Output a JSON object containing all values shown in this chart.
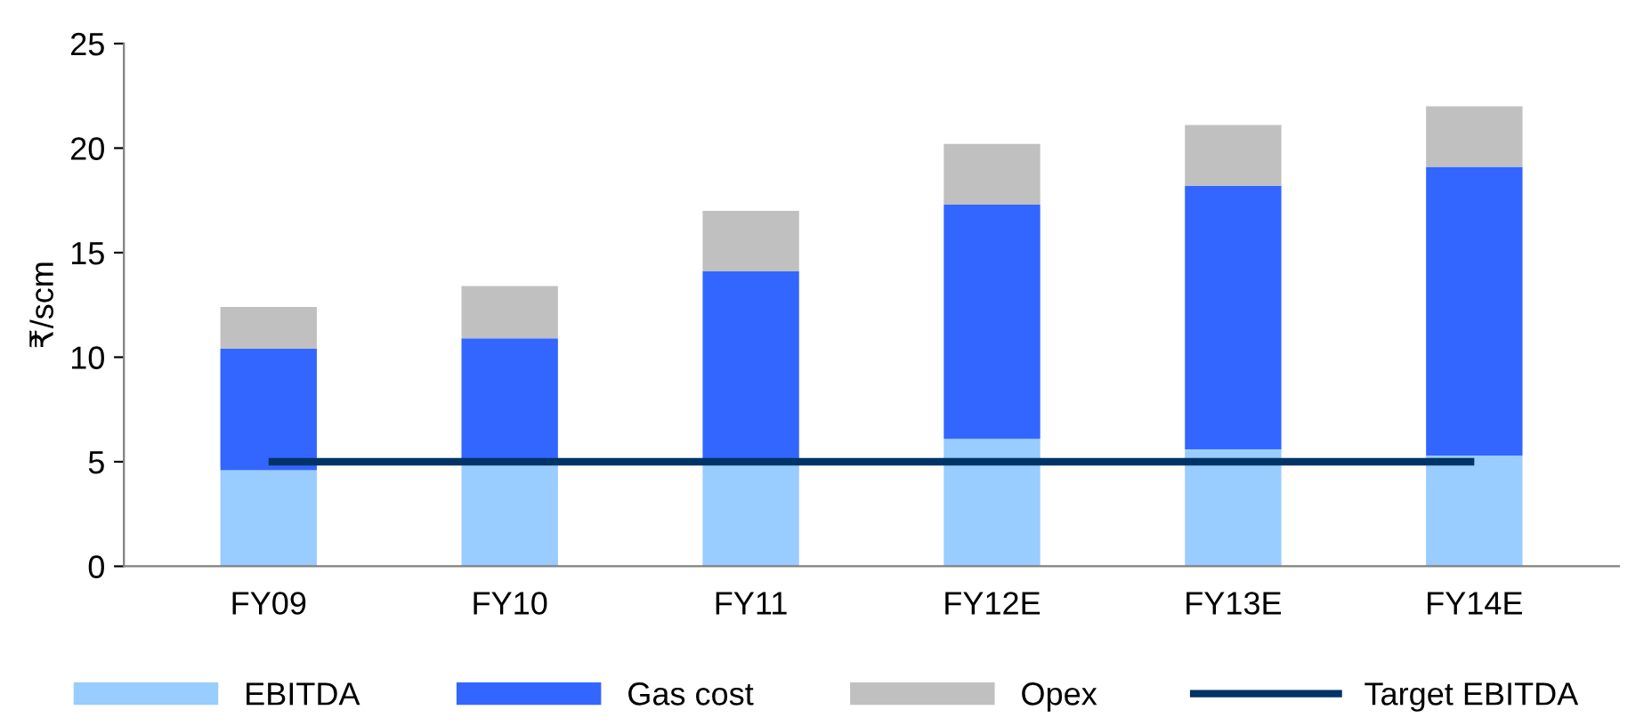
{
  "chart_data": {
    "type": "bar",
    "stacked": true,
    "ylabel": "₹/scm",
    "categories": [
      "FY09",
      "FY10",
      "FY11",
      "FY12E",
      "FY13E",
      "FY14E"
    ],
    "series": [
      {
        "name": "EBITDA",
        "color": "#99ccff",
        "values": [
          4.6,
          4.9,
          4.9,
          6.1,
          5.6,
          5.3
        ]
      },
      {
        "name": "Gas cost",
        "color": "#3366ff",
        "values": [
          5.8,
          6.0,
          9.2,
          11.2,
          12.6,
          13.8
        ]
      },
      {
        "name": "Opex",
        "color": "#c0c0c0",
        "values": [
          2.0,
          2.5,
          2.9,
          2.9,
          2.9,
          2.9
        ]
      },
      {
        "name": "Target EBITDA",
        "type": "line",
        "color": "#003366",
        "values": [
          5,
          5,
          5,
          5,
          5,
          5
        ]
      }
    ],
    "ylim": [
      0,
      25
    ],
    "yticks": [
      0,
      5,
      10,
      15,
      20,
      25
    ],
    "grid": false,
    "legend": "bottom"
  }
}
